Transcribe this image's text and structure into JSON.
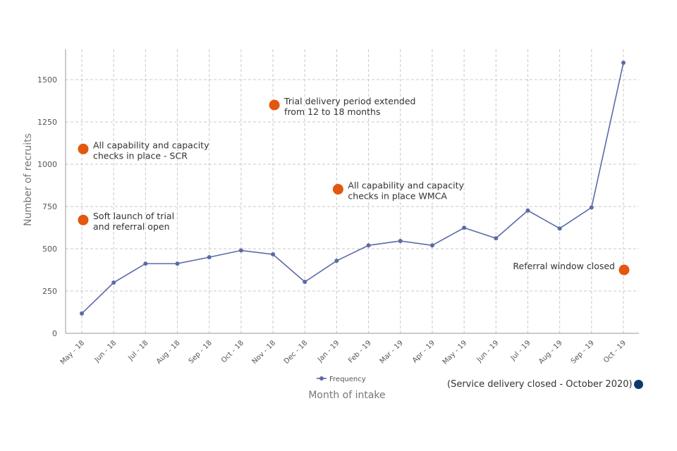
{
  "chart_data": {
    "type": "line",
    "xlabel": "Month of intake",
    "ylabel": "Number of recruits",
    "ylim": [
      0,
      1650
    ],
    "yticks": [
      0,
      250,
      500,
      750,
      1000,
      1250,
      1500
    ],
    "grid": true,
    "legend": {
      "position": "bottom-center",
      "entries": [
        "Frequency"
      ]
    },
    "categories": [
      "May - 18",
      "Jun - 18",
      "Jul - 18",
      "Aug - 18",
      "Sep - 18",
      "Oct - 18",
      "Nov - 18",
      "Dec - 18",
      "Jan - 19",
      "Feb - 19",
      "Mar - 19",
      "Apr - 19",
      "May - 19",
      "Jun - 19",
      "Jul - 19",
      "Aug - 19",
      "Sep - 19",
      "Oct - 19"
    ],
    "series": [
      {
        "name": "Frequency",
        "values": [
          117,
          300,
          412,
          412,
          450,
          490,
          467,
          304,
          429,
          520,
          546,
          520,
          624,
          562,
          726,
          620,
          744,
          1600
        ]
      }
    ],
    "annotations": [
      {
        "text": [
          "Soft launch of trial",
          "and referral open"
        ],
        "category": 0,
        "y": 670,
        "side": "right"
      },
      {
        "text": [
          "All capability and capacity",
          "checks in place - SCR"
        ],
        "category": 0,
        "y": 1090,
        "side": "right"
      },
      {
        "text": [
          "Trial delivery period extended",
          "from 12 to 18 months"
        ],
        "category": 6,
        "y": 1350,
        "side": "right"
      },
      {
        "text": [
          "All capability and capacity",
          "checks in place WMCA"
        ],
        "category": 8,
        "y": 852,
        "side": "right"
      },
      {
        "text": [
          "Referral window closed"
        ],
        "category": 17,
        "y": 375,
        "side": "left"
      }
    ],
    "footnote": "(Service delivery closed - October 2020)"
  },
  "colors": {
    "line": "#5b6aa8",
    "annotation": "#e3570f",
    "footnote_dot": "#0b3a6e",
    "grid": "#c8c8c8",
    "text": "#555555"
  }
}
